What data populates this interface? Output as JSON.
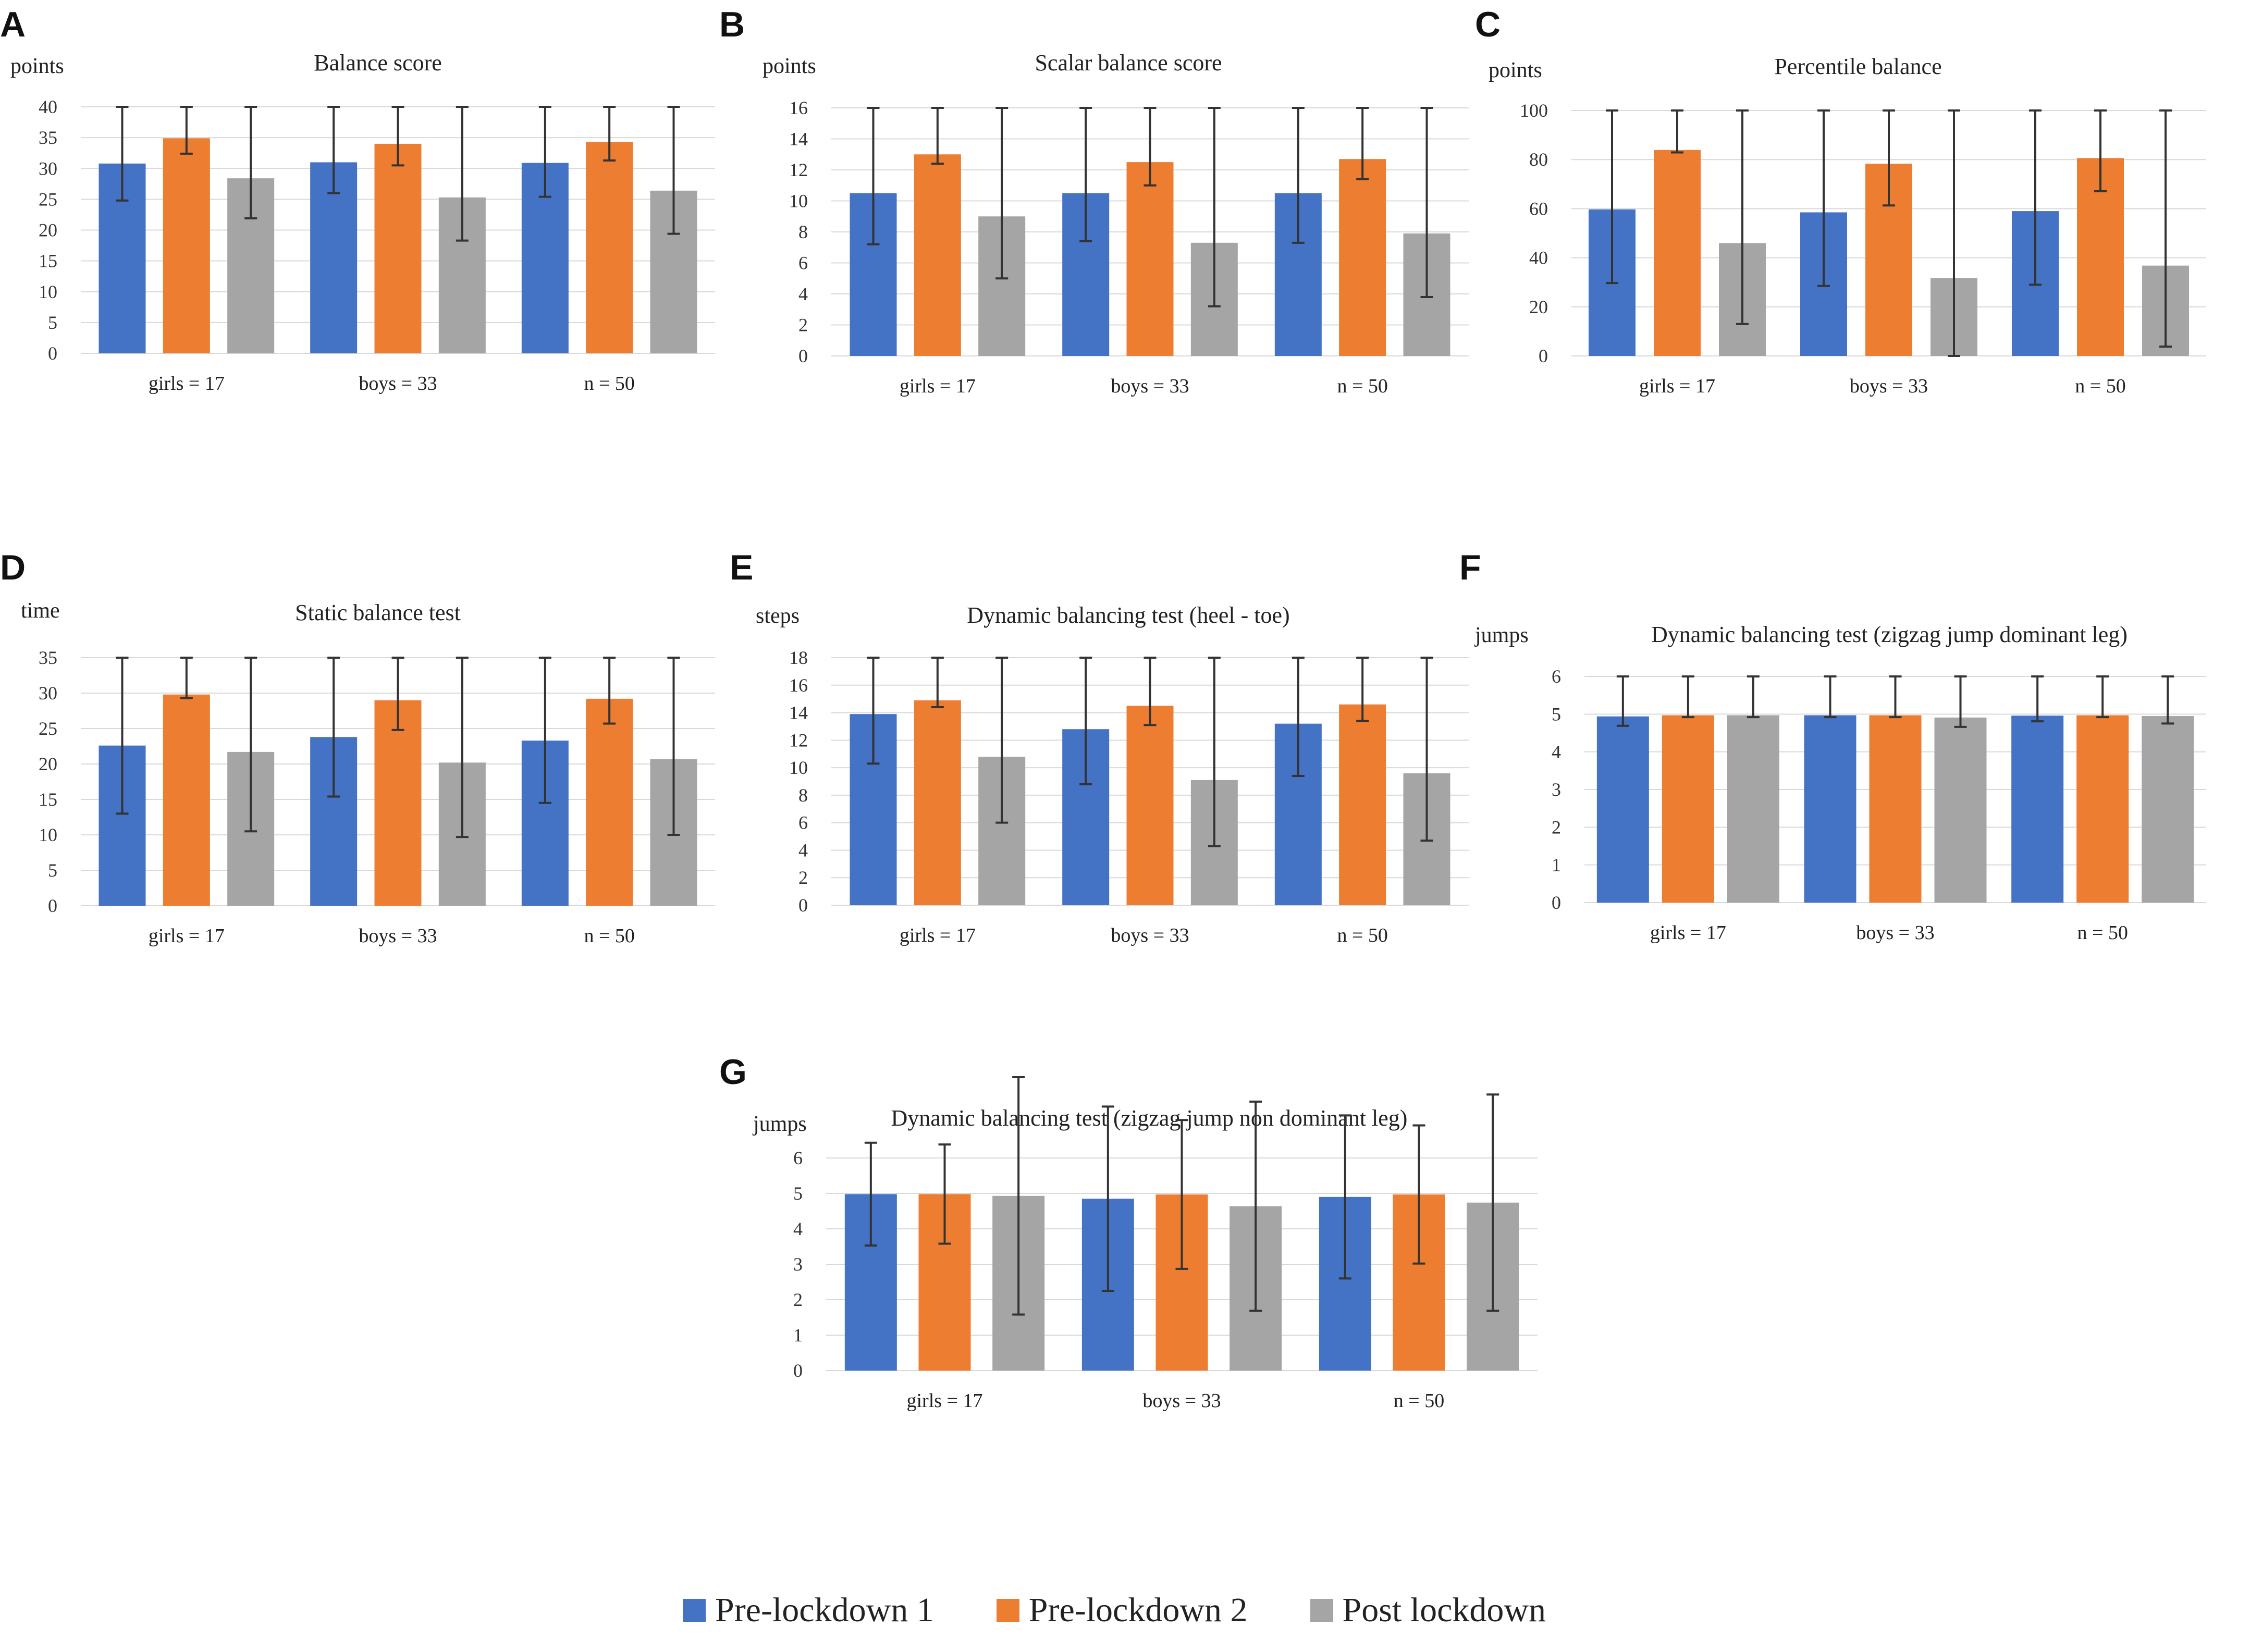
{
  "colors": {
    "pre1": "#4472c4",
    "pre2": "#ed7d31",
    "post": "#a5a5a5",
    "error_bar": "#333333",
    "grid": "#d9d9d9"
  },
  "legend": [
    {
      "key": "pre1",
      "label": "Pre-lockdown 1"
    },
    {
      "key": "pre2",
      "label": "Pre-lockdown 2"
    },
    {
      "key": "post",
      "label": "Post lockdown"
    }
  ],
  "chart_data": [
    {
      "panel": "A",
      "type": "bar",
      "title": "Balance score",
      "ylabel": "points",
      "ylim": [
        0,
        40
      ],
      "yticks": [
        0,
        5,
        10,
        15,
        20,
        25,
        30,
        35,
        40
      ],
      "categories": [
        "girls = 17",
        "boys = 33",
        "n = 50"
      ],
      "series": [
        {
          "name": "Pre-lockdown 1",
          "key": "pre1",
          "values": [
            30.8,
            31,
            30.9
          ],
          "errors": [
            6,
            5,
            5.5
          ]
        },
        {
          "name": "Pre-lockdown 2",
          "key": "pre2",
          "values": [
            34.9,
            34,
            34.3
          ],
          "errors": [
            2.5,
            3.5,
            3
          ]
        },
        {
          "name": "Post lockdown",
          "key": "post",
          "values": [
            28.4,
            25.3,
            26.4
          ],
          "errors": [
            6.5,
            7,
            7
          ]
        }
      ]
    },
    {
      "panel": "B",
      "type": "bar",
      "title": "Scalar balance score",
      "ylabel": "points",
      "ylim": [
        0,
        16
      ],
      "yticks": [
        0,
        2,
        4,
        6,
        8,
        10,
        12,
        14,
        16
      ],
      "categories": [
        "girls = 17",
        "boys = 33",
        "n = 50"
      ],
      "series": [
        {
          "name": "Pre-lockdown 1",
          "key": "pre1",
          "values": [
            10.5,
            10.5,
            10.5
          ],
          "errors": [
            3.3,
            3.1,
            3.2
          ]
        },
        {
          "name": "Pre-lockdown 2",
          "key": "pre2",
          "values": [
            13,
            12.5,
            12.7
          ],
          "errors": [
            0.6,
            1.5,
            1.3
          ]
        },
        {
          "name": "Post lockdown",
          "key": "post",
          "values": [
            9,
            7.3,
            7.9
          ],
          "errors": [
            4,
            4.1,
            4.1
          ]
        }
      ]
    },
    {
      "panel": "C",
      "type": "bar",
      "title": "Percentile balance",
      "ylabel": "points",
      "ylim": [
        0,
        100
      ],
      "yticks": [
        0,
        20,
        40,
        60,
        80,
        100
      ],
      "categories": [
        "girls = 17",
        "boys = 33",
        "n = 50"
      ],
      "series": [
        {
          "name": "Pre-lockdown 1",
          "key": "pre1",
          "values": [
            59.7,
            58.5,
            59
          ],
          "errors": [
            30,
            30,
            30
          ]
        },
        {
          "name": "Pre-lockdown 2",
          "key": "pre2",
          "values": [
            83.9,
            78.3,
            80.6
          ],
          "errors": [
            1,
            17,
            13.5
          ]
        },
        {
          "name": "Post lockdown",
          "key": "post",
          "values": [
            46,
            31.8,
            36.8
          ],
          "errors": [
            33,
            32,
            33
          ]
        }
      ]
    },
    {
      "panel": "D",
      "type": "bar",
      "title": "Static balance test",
      "ylabel": "time",
      "ylim": [
        0,
        35
      ],
      "yticks": [
        0,
        5,
        10,
        15,
        20,
        25,
        30,
        35
      ],
      "categories": [
        "girls = 17",
        "boys = 33",
        "n = 50"
      ],
      "series": [
        {
          "name": "Pre-lockdown 1",
          "key": "pre1",
          "values": [
            22.6,
            23.8,
            23.3
          ],
          "errors": [
            9.6,
            8.4,
            8.8
          ]
        },
        {
          "name": "Pre-lockdown 2",
          "key": "pre2",
          "values": [
            29.8,
            29,
            29.2
          ],
          "errors": [
            0.5,
            4.2,
            3.5
          ]
        },
        {
          "name": "Post lockdown",
          "key": "post",
          "values": [
            21.7,
            20.2,
            20.7
          ],
          "errors": [
            11.2,
            10.5,
            10.7
          ]
        }
      ]
    },
    {
      "panel": "E",
      "type": "bar",
      "title": "Dynamic balancing test (heel - toe)",
      "ylabel": "steps",
      "ylim": [
        0,
        18
      ],
      "yticks": [
        0,
        2,
        4,
        6,
        8,
        10,
        12,
        14,
        16,
        18
      ],
      "categories": [
        "girls = 17",
        "boys = 33",
        "n = 50"
      ],
      "series": [
        {
          "name": "Pre-lockdown 1",
          "key": "pre1",
          "values": [
            13.9,
            12.8,
            13.2
          ],
          "errors": [
            3.6,
            4,
            3.8
          ]
        },
        {
          "name": "Pre-lockdown 2",
          "key": "pre2",
          "values": [
            14.9,
            14.5,
            14.6
          ],
          "errors": [
            0.5,
            1.4,
            1.2
          ]
        },
        {
          "name": "Post lockdown",
          "key": "post",
          "values": [
            10.8,
            9.1,
            9.6
          ],
          "errors": [
            4.8,
            4.8,
            4.9
          ]
        }
      ]
    },
    {
      "panel": "F",
      "type": "bar",
      "title": "Dynamic balancing test (zigzag jump dominant leg)",
      "ylabel": "jumps",
      "ylim": [
        0,
        6
      ],
      "yticks": [
        0,
        1,
        2,
        3,
        4,
        5,
        6
      ],
      "categories": [
        "girls = 17",
        "boys = 33",
        "n = 50"
      ],
      "series": [
        {
          "name": "Pre-lockdown 1",
          "key": "pre1",
          "values": [
            4.94,
            4.97,
            4.96
          ],
          "errors": [
            0.25,
            0.05,
            0.15
          ]
        },
        {
          "name": "Pre-lockdown 2",
          "key": "pre2",
          "values": [
            4.97,
            4.97,
            4.97
          ],
          "errors": [
            0.05,
            0.05,
            0.05
          ]
        },
        {
          "name": "Post lockdown",
          "key": "post",
          "values": [
            4.97,
            4.91,
            4.95
          ],
          "errors": [
            0.05,
            0.25,
            0.2
          ]
        }
      ]
    },
    {
      "panel": "G",
      "type": "bar",
      "title": "Dynamic balancing test (zigzag jump non dominant leg)",
      "ylabel": "jumps",
      "ylim": [
        0,
        6
      ],
      "yticks": [
        0,
        1,
        2,
        3,
        4,
        5,
        6
      ],
      "categories": [
        "girls = 17",
        "boys = 33",
        "n = 50"
      ],
      "series": [
        {
          "name": "Pre-lockdown 1",
          "key": "pre1",
          "values": [
            4.98,
            4.85,
            4.9
          ],
          "errors": [
            1.45,
            2.6,
            2.3
          ]
        },
        {
          "name": "Pre-lockdown 2",
          "key": "pre2",
          "values": [
            4.98,
            4.97,
            4.97
          ],
          "errors": [
            1.4,
            2.1,
            1.95
          ]
        },
        {
          "name": "Post lockdown",
          "key": "post",
          "values": [
            4.93,
            4.64,
            4.74
          ],
          "errors": [
            3.35,
            2.95,
            3.05
          ]
        }
      ]
    }
  ]
}
